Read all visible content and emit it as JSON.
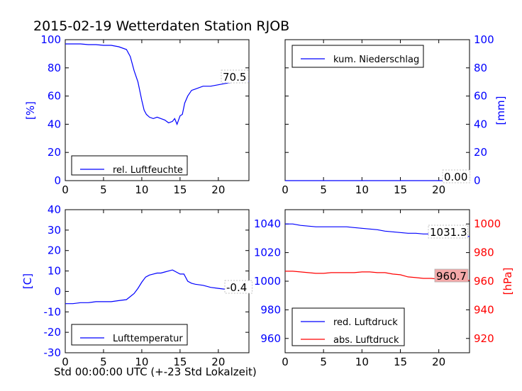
{
  "title": "2015-02-19 Wetterdaten Station RJOB",
  "xlabel": "Std 00:00:00 UTC (+-23 Std Lokalzeit)",
  "colors": {
    "blue": "#0000ff",
    "red": "#ff0000",
    "annot_red_bg": "#f4a9a9"
  },
  "chart_data": [
    {
      "id": "humidity",
      "type": "line",
      "ylabel": "[%]",
      "ylabel_color": "#0000ff",
      "xlim": [
        0,
        24
      ],
      "ylim": [
        0,
        100
      ],
      "xticks": [
        0,
        5,
        10,
        15,
        20
      ],
      "yticks": [
        0,
        20,
        40,
        60,
        80,
        100
      ],
      "legend": {
        "location": "lower-center",
        "entries": [
          "rel. Luftfeuchte"
        ]
      },
      "annotation": "70.5",
      "series": [
        {
          "name": "rel. Luftfeuchte",
          "color": "#0000ff",
          "x": [
            0,
            1,
            2,
            3,
            4,
            5,
            6,
            7,
            8,
            8.5,
            9,
            9.5,
            10,
            10.3,
            10.6,
            11,
            11.5,
            12,
            12.5,
            13,
            13.5,
            14,
            14.3,
            14.6,
            15,
            15.3,
            15.6,
            16,
            16.5,
            17,
            18,
            19,
            20,
            21,
            22,
            23,
            24
          ],
          "y": [
            97,
            97,
            97,
            96.5,
            96.5,
            96,
            96,
            95,
            93,
            88,
            78,
            70,
            57,
            50,
            47,
            45,
            44,
            45,
            44,
            43,
            41,
            42,
            44,
            40,
            46,
            47,
            55,
            60,
            64,
            65,
            67,
            67,
            68,
            69,
            70,
            70,
            70.5
          ]
        }
      ]
    },
    {
      "id": "precipitation",
      "type": "line",
      "ylabel": "[mm]",
      "ylabel_color": "#0000ff",
      "yaxis_side": "right",
      "xlim": [
        0,
        24
      ],
      "ylim": [
        0,
        100
      ],
      "xticks": [
        0,
        5,
        10,
        15,
        20
      ],
      "yticks": [
        0,
        20,
        40,
        60,
        80,
        100
      ],
      "legend": {
        "location": "upper-left",
        "entries": [
          "kum. Niederschlag"
        ]
      },
      "annotation": "0.00",
      "series": [
        {
          "name": "kum. Niederschlag",
          "color": "#0000ff",
          "x": [
            0,
            24
          ],
          "y": [
            0,
            0
          ]
        }
      ]
    },
    {
      "id": "temperature",
      "type": "line",
      "ylabel": "[C]",
      "ylabel_color": "#0000ff",
      "xlim": [
        0,
        24
      ],
      "ylim": [
        -30,
        40
      ],
      "xticks": [
        0,
        5,
        10,
        15,
        20
      ],
      "yticks": [
        -30,
        -20,
        -10,
        0,
        10,
        20,
        30,
        40
      ],
      "legend": {
        "location": "lower-center",
        "entries": [
          "Lufttemperatur"
        ]
      },
      "annotation": "-0.4",
      "series": [
        {
          "name": "Lufttemperatur",
          "color": "#0000ff",
          "x": [
            0,
            1,
            2,
            3,
            4,
            5,
            6,
            7,
            8,
            9,
            9.5,
            10,
            10.5,
            11,
            11.5,
            12,
            12.5,
            13,
            13.5,
            14,
            14.5,
            15,
            15.5,
            16,
            16.5,
            17,
            18,
            19,
            20,
            21,
            22,
            23,
            24
          ],
          "y": [
            -6,
            -6,
            -5.5,
            -5.5,
            -5,
            -5,
            -5,
            -4.5,
            -4,
            -1,
            1.5,
            4.5,
            7,
            8,
            8.5,
            9,
            9,
            9.5,
            10,
            10.5,
            9.5,
            8.5,
            8.5,
            5,
            4,
            3.5,
            3,
            2,
            1.5,
            1,
            0,
            -0.2,
            -0.4
          ]
        }
      ]
    },
    {
      "id": "pressure",
      "type": "line",
      "ylim": [
        950,
        1050
      ],
      "yticks": [
        960,
        980,
        1000,
        1020,
        1040
      ],
      "xlim": [
        0,
        24
      ],
      "xticks": [
        0,
        5,
        10,
        15,
        20
      ],
      "ylabel2": "[hPa]",
      "ylabel2_color": "#ff0000",
      "ylim2": [
        910,
        1010
      ],
      "yticks2": [
        920,
        940,
        960,
        980,
        1000
      ],
      "legend": {
        "location": "lower-left",
        "entries": [
          "red. Luftdruck",
          "abs. Luftdruck"
        ]
      },
      "annotations": [
        "1031.3",
        "960.7"
      ],
      "series": [
        {
          "name": "red. Luftdruck",
          "color": "#0000ff",
          "axis": "left",
          "x": [
            0,
            1,
            2,
            3,
            4,
            5,
            6,
            7,
            8,
            9,
            10,
            11,
            12,
            13,
            14,
            15,
            16,
            17,
            18,
            19,
            20,
            21,
            22,
            23,
            24
          ],
          "y": [
            1040,
            1040,
            1039,
            1038.5,
            1038,
            1038,
            1038,
            1038,
            1038,
            1037.5,
            1037,
            1036.5,
            1036,
            1035,
            1034.5,
            1034,
            1033.5,
            1033.5,
            1033,
            1033,
            1032.5,
            1032,
            1032,
            1031.5,
            1031.3
          ]
        },
        {
          "name": "abs. Luftdruck",
          "color": "#ff0000",
          "axis": "right",
          "x": [
            0,
            1,
            2,
            3,
            4,
            5,
            6,
            7,
            8,
            9,
            10,
            11,
            12,
            13,
            14,
            15,
            16,
            17,
            18,
            19,
            20,
            21,
            22,
            23,
            24
          ],
          "y": [
            967,
            967,
            966.5,
            966,
            965.5,
            965.5,
            966,
            966,
            966,
            966,
            966.5,
            966.5,
            966,
            966,
            965,
            964.5,
            963,
            962.5,
            962,
            962,
            961.5,
            961,
            961,
            960.7,
            960.7
          ]
        }
      ]
    }
  ]
}
